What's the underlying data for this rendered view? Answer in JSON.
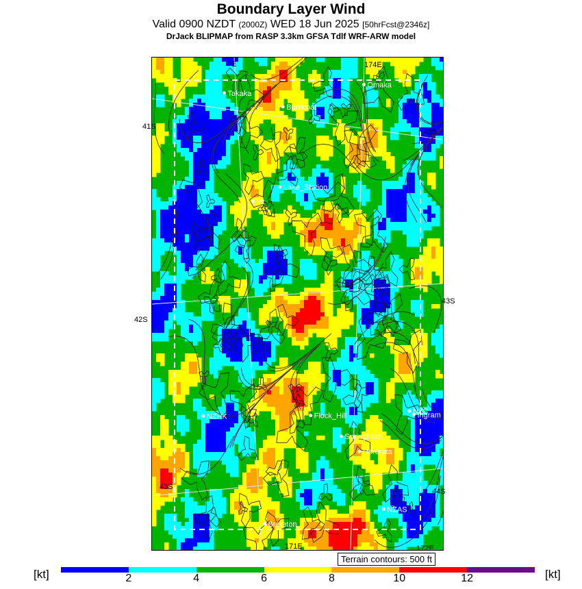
{
  "header": {
    "title": "Boundary Layer Wind",
    "valid_prefix": "Valid 0900 NZDT",
    "valid_utc": "(2000Z)",
    "valid_date": "WED 18 Jun 2025",
    "forecast": "[50hrFcst@2346z]",
    "model": "DrJack BLIPMAP from RASP 3.3km GFSA Tdlf WRF-ARW model"
  },
  "map": {
    "terrain_note": "Terrain contours: 500 ft",
    "coord_labels": {
      "top_a": "E",
      "top_b": "174E",
      "left_top": "41S",
      "right_top": "42S",
      "left_mid": "42S",
      "right_mid": "43S",
      "left_bot": "43S",
      "right_bot": "44S",
      "bottom_a": "171E",
      "bottom_b": "172E"
    },
    "places": [
      {
        "name": "Takaka",
        "lon": 0.248,
        "lat": 0.072
      },
      {
        "name": "Omaka",
        "lon": 0.728,
        "lat": 0.055
      },
      {
        "name": "Barricoat",
        "lon": 0.45,
        "lat": 0.1
      },
      {
        "name": "Lake_Station",
        "lon": 0.44,
        "lat": 0.263
      },
      {
        "name": "Mt",
        "lon": 0.346,
        "lat": 0.292
      },
      {
        "name": "NZHK",
        "lon": 0.176,
        "lat": 0.728
      },
      {
        "name": "Flock_Hill",
        "lon": 0.545,
        "lat": 0.727
      },
      {
        "name": "NZC",
        "lon": 0.885,
        "lat": 0.718
      },
      {
        "name": "Ingram",
        "lon": 0.9,
        "lat": 0.725
      },
      {
        "name": "Springfield",
        "lon": 0.65,
        "lat": 0.769
      },
      {
        "name": "Hororata",
        "lon": 0.713,
        "lat": 0.8
      },
      {
        "name": "NZAS",
        "lon": 0.796,
        "lat": 0.917
      },
      {
        "name": "Brereton",
        "lon": 0.387,
        "lat": 0.947
      }
    ]
  },
  "colorbar": {
    "unit": "[kt]",
    "colors": [
      "#0000ff",
      "#00ffff",
      "#00b400",
      "#ffff00",
      "#ffa500",
      "#ff0000",
      "#6a0a8a"
    ],
    "ticks": [
      "2",
      "4",
      "6",
      "8",
      "10",
      "12"
    ]
  },
  "colors": {
    "blue": "#0000ff",
    "cyan": "#00ffff",
    "green": "#00b400",
    "yellow": "#ffff00",
    "orange": "#ffa500",
    "red": "#ff0000",
    "purple": "#6a0a8a"
  }
}
